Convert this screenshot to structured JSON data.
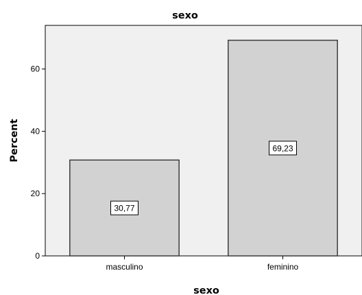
{
  "chart_data": {
    "type": "bar",
    "title": "sexo",
    "xlabel": "sexo",
    "ylabel": "Percent",
    "categories": [
      "masculino",
      "feminino"
    ],
    "values": [
      30.77,
      69.23
    ],
    "value_labels": [
      "30,77",
      "69,23"
    ],
    "ylim": [
      0,
      74
    ],
    "yticks": [
      0,
      20,
      40,
      60
    ],
    "grid": false,
    "legend": "none",
    "colors": {
      "plot_background": "#f0f0f0",
      "bar_fill": "#d2d2d2",
      "bar_stroke": "#3c3c3c",
      "axis": "#000000"
    }
  }
}
